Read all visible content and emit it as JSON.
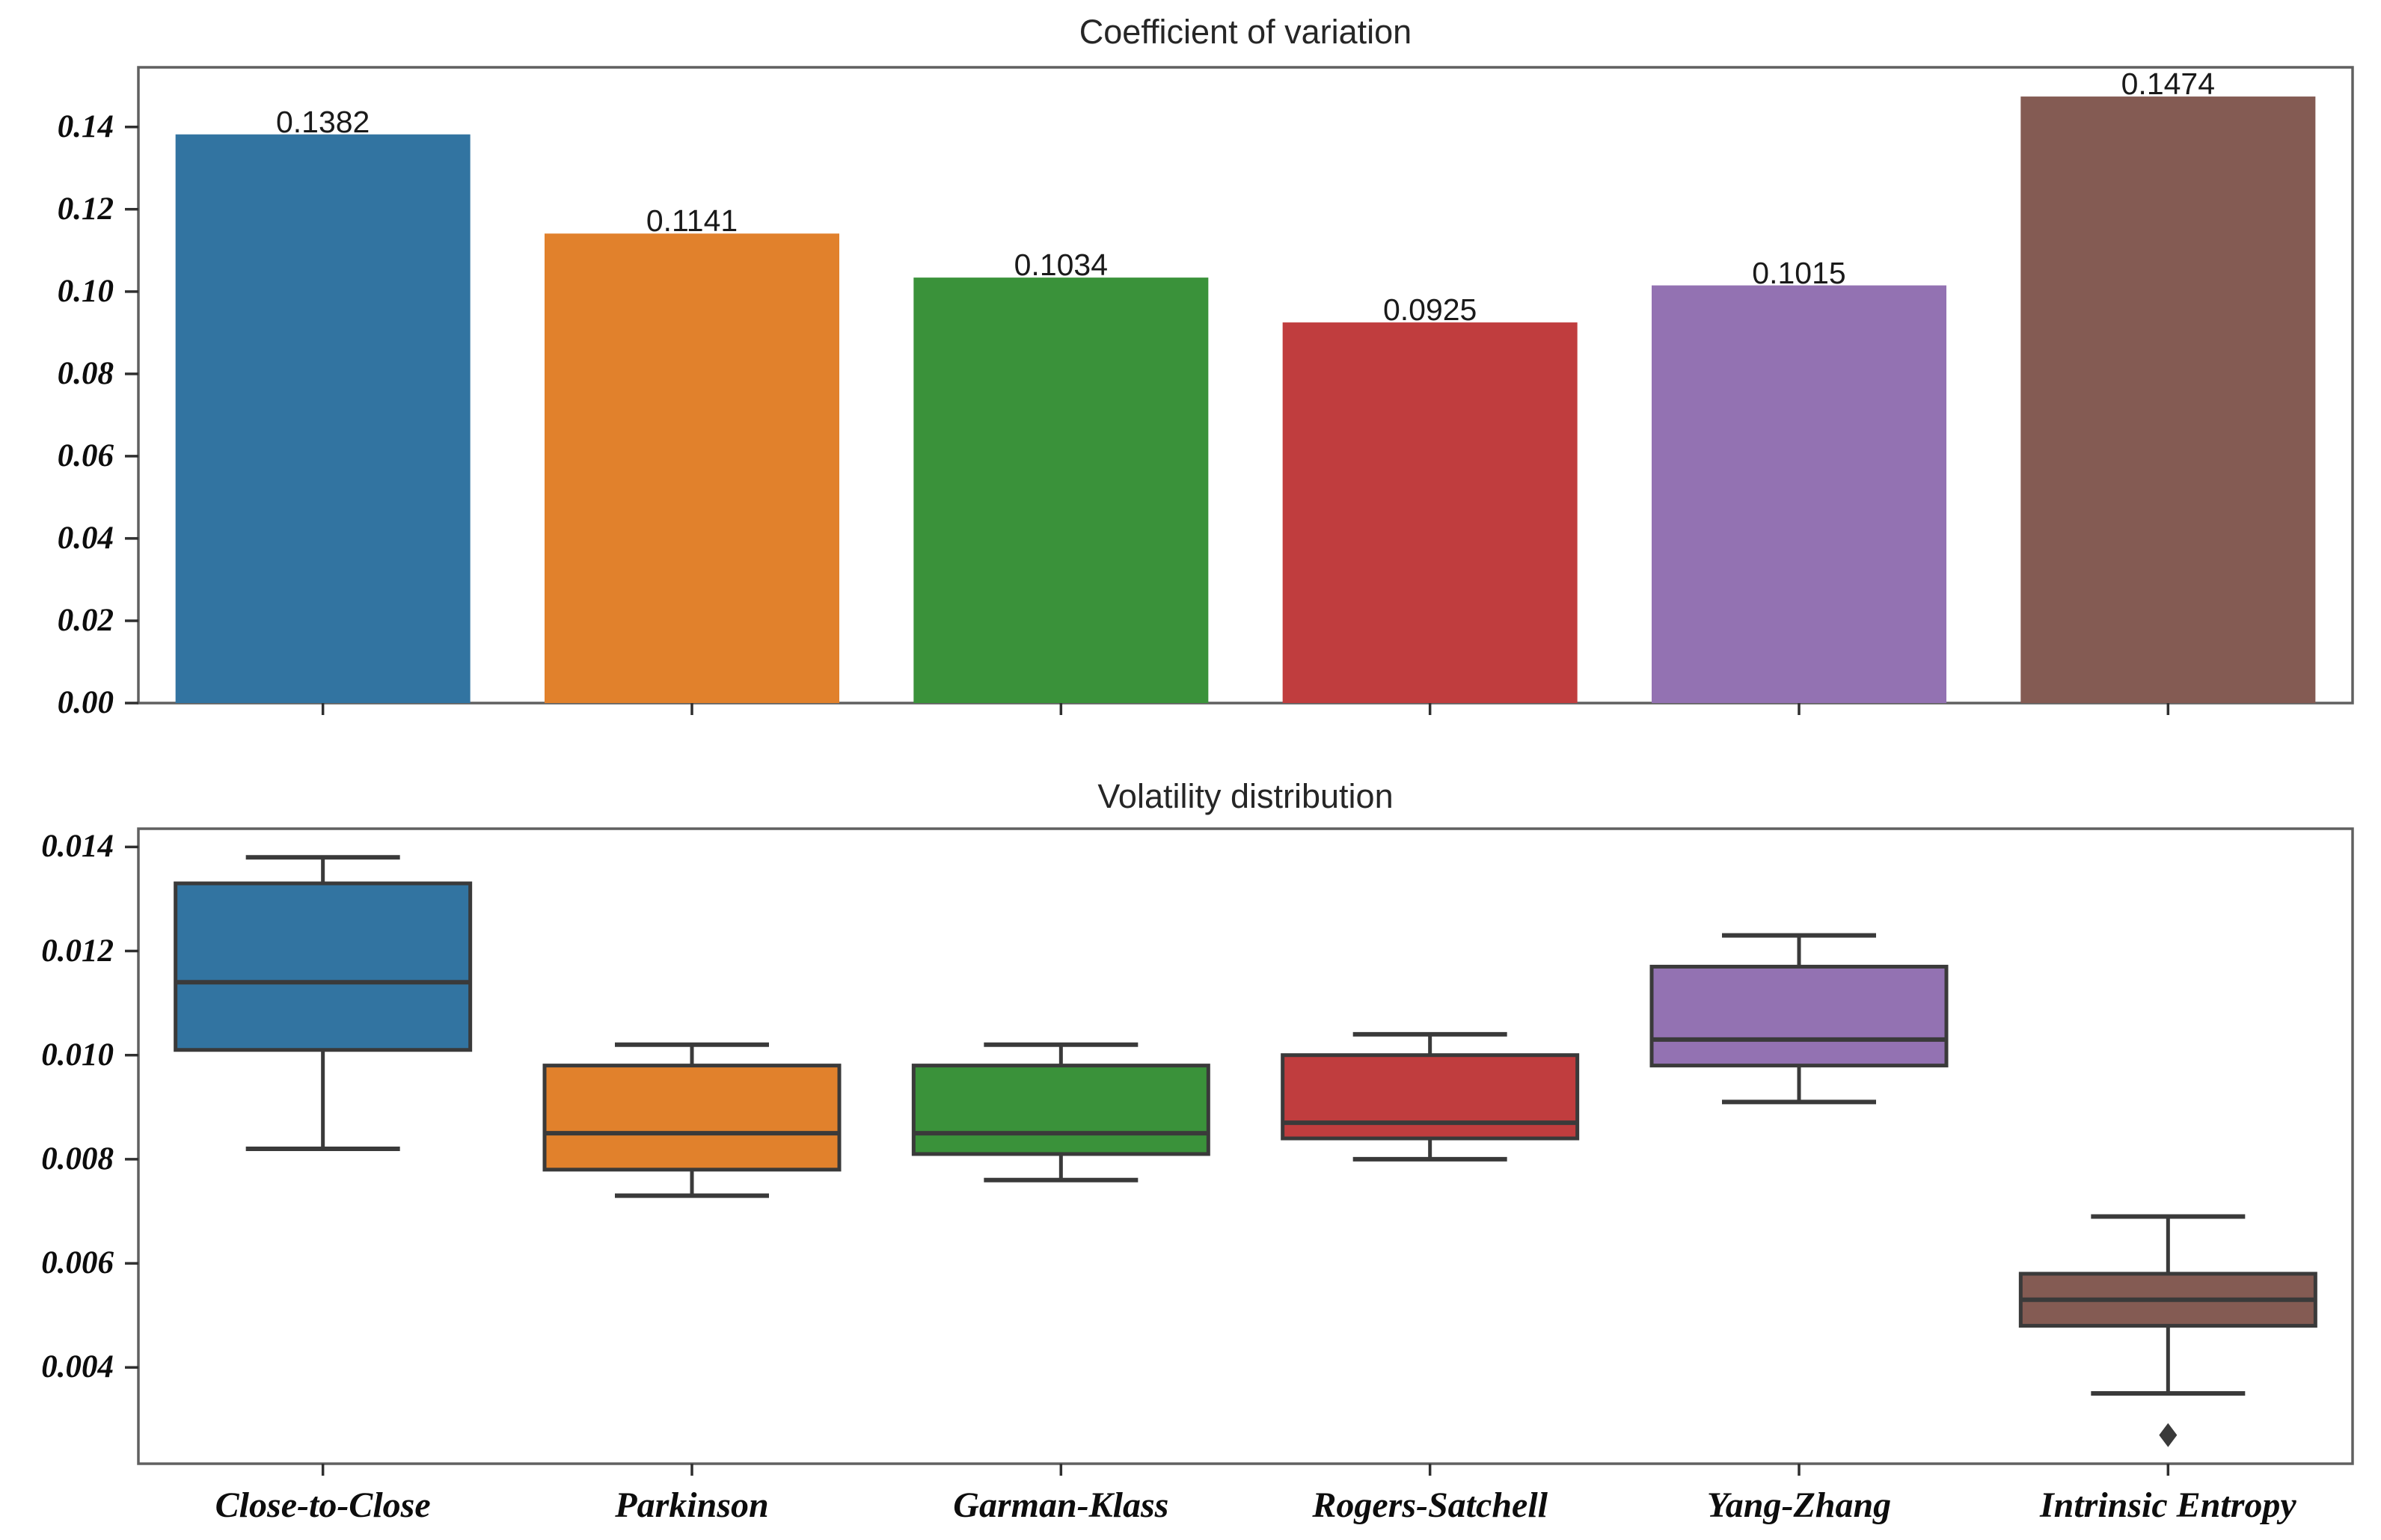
{
  "figure": {
    "background": "#ffffff",
    "palette": [
      "#3274a1",
      "#e1812c",
      "#3a923a",
      "#c03d3e",
      "#9372b2",
      "#845b53"
    ],
    "box_edge_color": "#3a3a3a",
    "spine_color": "#606060",
    "tick_color": "#2f2f2f"
  },
  "categories": [
    "Close-to-Close",
    "Parkinson",
    "Garman-Klass",
    "Rogers-Satchell",
    "Yang-Zhang",
    "Intrinsic Entropy"
  ],
  "chart_data": [
    {
      "type": "bar",
      "title": "Coefficient of variation",
      "categories": [
        "Close-to-Close",
        "Parkinson",
        "Garman-Klass",
        "Rogers-Satchell",
        "Yang-Zhang",
        "Intrinsic Entropy"
      ],
      "values": [
        0.1382,
        0.1141,
        0.1034,
        0.0925,
        0.1015,
        0.1474
      ],
      "bar_labels": [
        "0.1382",
        "0.1141",
        "0.1034",
        "0.0925",
        "0.1015",
        "0.1474"
      ],
      "xlabel": "",
      "ylabel": "",
      "ylim": [
        0,
        0.1545
      ],
      "yticks": [
        0.0,
        0.02,
        0.04,
        0.06,
        0.08,
        0.1,
        0.12,
        0.14
      ],
      "ytick_labels": [
        "0.00",
        "0.02",
        "0.04",
        "0.06",
        "0.08",
        "0.10",
        "0.12",
        "0.14"
      ],
      "grid": false,
      "legend": "none"
    },
    {
      "type": "boxplot",
      "title": "Volatility distribution",
      "categories": [
        "Close-to-Close",
        "Parkinson",
        "Garman-Klass",
        "Rogers-Satchell",
        "Yang-Zhang",
        "Intrinsic Entropy"
      ],
      "xlabel": "",
      "ylabel": "",
      "ylim": [
        0.00215,
        0.01435
      ],
      "yticks": [
        0.004,
        0.006,
        0.008,
        0.01,
        0.012,
        0.014
      ],
      "ytick_labels": [
        "0.004",
        "0.006",
        "0.008",
        "0.010",
        "0.012",
        "0.014"
      ],
      "grid": false,
      "legend": "none",
      "series": [
        {
          "name": "Close-to-Close",
          "whisker_low": 0.0082,
          "q1": 0.0101,
          "median": 0.0114,
          "q3": 0.0133,
          "whisker_high": 0.0138,
          "outliers": []
        },
        {
          "name": "Parkinson",
          "whisker_low": 0.0073,
          "q1": 0.0078,
          "median": 0.0085,
          "q3": 0.0098,
          "whisker_high": 0.0102,
          "outliers": []
        },
        {
          "name": "Garman-Klass",
          "whisker_low": 0.0076,
          "q1": 0.0081,
          "median": 0.0085,
          "q3": 0.0098,
          "whisker_high": 0.0102,
          "outliers": []
        },
        {
          "name": "Rogers-Satchell",
          "whisker_low": 0.008,
          "q1": 0.0084,
          "median": 0.0087,
          "q3": 0.01,
          "whisker_high": 0.0104,
          "outliers": []
        },
        {
          "name": "Yang-Zhang",
          "whisker_low": 0.0091,
          "q1": 0.0098,
          "median": 0.0103,
          "q3": 0.0117,
          "whisker_high": 0.0123,
          "outliers": []
        },
        {
          "name": "Intrinsic Entropy",
          "whisker_low": 0.0035,
          "q1": 0.0048,
          "median": 0.0053,
          "q3": 0.0058,
          "whisker_high": 0.0069,
          "outliers": [
            0.0027
          ]
        }
      ]
    }
  ]
}
